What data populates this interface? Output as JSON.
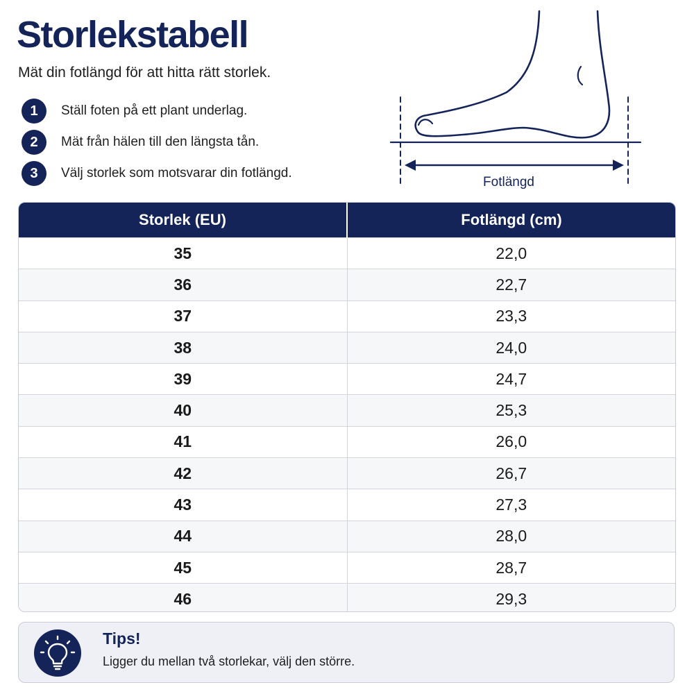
{
  "header": {
    "title": "Storlekstabell",
    "subtitle": "Mät din fotlängd för att hitta rätt storlek."
  },
  "steps": [
    {
      "number": "1",
      "text": "Ställ foten på ett plant underlag."
    },
    {
      "number": "2",
      "text": "Mät från hälen till den längsta tån."
    },
    {
      "number": "3",
      "text": "Välj storlek som motsvarar din fotlängd."
    }
  ],
  "illustration": {
    "label": "Fotlängd",
    "icon": "foot-measurement-icon",
    "color": "#142459"
  },
  "table": {
    "headers": [
      "Storlek (EU)",
      "Fotlängd (cm)"
    ],
    "rows": [
      [
        "35",
        "22,0"
      ],
      [
        "36",
        "22,7"
      ],
      [
        "37",
        "23,3"
      ],
      [
        "38",
        "24,0"
      ],
      [
        "39",
        "24,7"
      ],
      [
        "40",
        "25,3"
      ],
      [
        "41",
        "26,0"
      ],
      [
        "42",
        "26,7"
      ],
      [
        "43",
        "27,3"
      ],
      [
        "44",
        "28,0"
      ],
      [
        "45",
        "28,7"
      ],
      [
        "46",
        "29,3"
      ]
    ]
  },
  "tip": {
    "title": "Tips!",
    "text": "Ligger du mellan två storlekar, välj den större.",
    "icon": "lightbulb-icon"
  },
  "colors": {
    "primary": "#142459",
    "row_alt": "#f6f7f9",
    "tip_background": "#eef0f6"
  }
}
